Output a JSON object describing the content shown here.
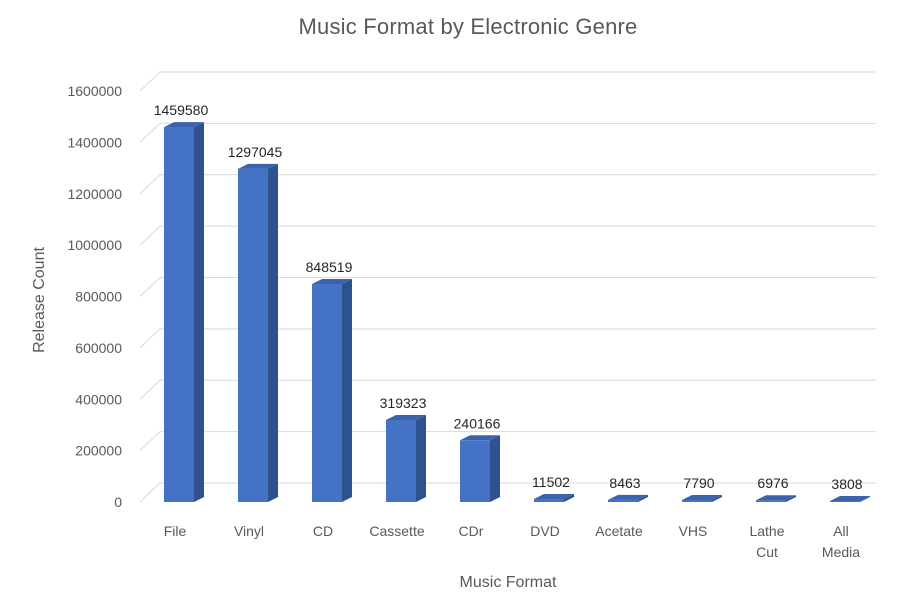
{
  "chart_data": {
    "type": "bar",
    "title": "Music Format by Electronic Genre",
    "xlabel": "Music Format",
    "ylabel": "Release Count",
    "categories": [
      "File",
      "Vinyl",
      "CD",
      "Cassette",
      "CDr",
      "DVD",
      "Acetate",
      "VHS",
      "Lathe Cut",
      "All Media"
    ],
    "values": [
      1459580,
      1297045,
      848519,
      319323,
      240166,
      11502,
      8463,
      7790,
      6976,
      3808
    ],
    "data_labels": [
      "1459580",
      "1297045",
      "848519",
      "319323",
      "240166",
      "11502",
      "8463",
      "7790",
      "6976",
      "3808"
    ],
    "y_ticks": [
      0,
      200000,
      400000,
      600000,
      800000,
      1000000,
      1200000,
      1400000,
      1600000
    ],
    "y_tick_labels": [
      "0",
      "200000",
      "400000",
      "600000",
      "800000",
      "1000000",
      "1200000",
      "1400000",
      "1600000"
    ],
    "ylim": [
      0,
      1600000
    ],
    "grid": true,
    "legend": "none",
    "style": "3d-column",
    "colors": {
      "bar_front": "#4472C4",
      "bar_side": "#2F528F",
      "bar_top": "#3A63AD",
      "grid": "#D9D9D9",
      "text": "#595959"
    }
  }
}
